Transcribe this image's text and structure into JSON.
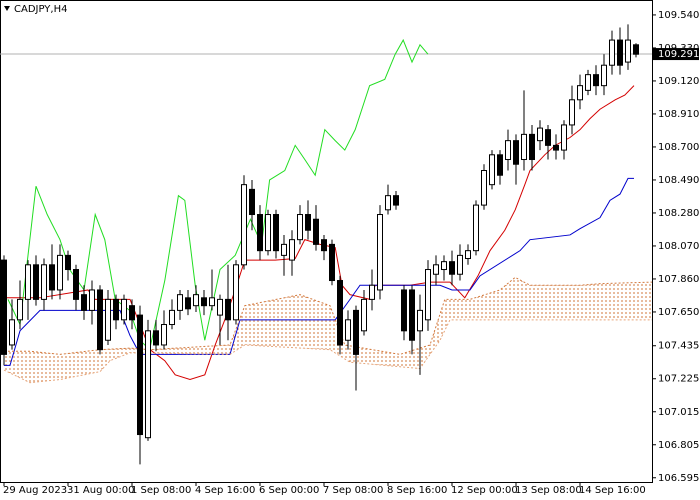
{
  "chart_data": {
    "type": "candlestick",
    "title": "CADJPY,H4",
    "categories": [
      "29 Aug 2023",
      null,
      null,
      null,
      null,
      null,
      null,
      null,
      "31 Aug 00:00",
      null,
      null,
      null,
      null,
      null,
      null,
      null,
      "1 Sep 08:00",
      null,
      null,
      null,
      null,
      null,
      null,
      null,
      "4 Sep 16:00",
      null,
      null,
      null,
      null,
      null,
      null,
      null,
      "6 Sep 00:00",
      null,
      null,
      null,
      null,
      null,
      null,
      null,
      "7 Sep 08:00",
      null,
      null,
      null,
      null,
      null,
      null,
      null,
      "8 Sep 16:00",
      null,
      null,
      null,
      null,
      null,
      null,
      null,
      "12 Sep 00:00",
      null,
      null,
      null,
      null,
      null,
      null,
      null,
      "13 Sep 08:00",
      null,
      null,
      null,
      null,
      null,
      null,
      null,
      "14 Sep 16:00",
      null,
      null,
      null,
      null,
      null,
      null,
      null,
      null,
      null
    ],
    "open": [
      107.98,
      107.44,
      107.6,
      107.73,
      107.95,
      107.73,
      107.95,
      107.79,
      108.01,
      107.92,
      107.76,
      107.66,
      107.79,
      107.47,
      107.73,
      107.6,
      107.69,
      107.63,
      106.85,
      107.53,
      107.44,
      107.57,
      107.66,
      107.74,
      107.69,
      107.74,
      107.69,
      107.63,
      107.73,
      107.6,
      107.95,
      108.43,
      108.27,
      108.04,
      108.27,
      108.01,
      107.98,
      108.11,
      108.27,
      108.24,
      108.11,
      108.08,
      107.85,
      107.47,
      107.66,
      107.53,
      107.73,
      107.79,
      108.3,
      108.39,
      107.79,
      107.79,
      107.53,
      107.6,
      107.89,
      107.92,
      107.97,
      107.89,
      107.99,
      108.04,
      108.33,
      108.46,
      108.65,
      108.62,
      108.74,
      108.62,
      108.78,
      108.74,
      108.81,
      108.71,
      108.68,
      108.84,
      109.0,
      109.06,
      109.16,
      109.09,
      109.22,
      109.38,
      109.24,
      109.35,
      null,
      null
    ],
    "high": [
      108.01,
      107.73,
      107.85,
      107.98,
      108.01,
      107.99,
      108.08,
      108.08,
      108.04,
      107.95,
      107.82,
      107.85,
      107.82,
      107.79,
      107.76,
      107.76,
      107.73,
      107.69,
      107.6,
      107.6,
      107.66,
      107.73,
      107.79,
      107.79,
      107.82,
      107.79,
      107.92,
      107.76,
      107.95,
      107.98,
      108.52,
      108.49,
      108.33,
      108.3,
      108.3,
      108.14,
      108.17,
      108.33,
      108.36,
      108.33,
      108.14,
      108.11,
      107.88,
      107.66,
      107.69,
      107.79,
      107.92,
      108.33,
      108.46,
      108.42,
      107.82,
      107.82,
      107.76,
      107.98,
      108.01,
      108.01,
      108.04,
      108.08,
      108.08,
      108.36,
      108.59,
      108.68,
      108.68,
      108.81,
      108.78,
      109.06,
      108.84,
      108.87,
      108.84,
      108.78,
      108.87,
      109.09,
      109.16,
      109.19,
      109.22,
      109.29,
      109.44,
      109.46,
      109.48,
      109.36,
      null,
      null
    ],
    "low": [
      107.31,
      107.41,
      107.54,
      107.6,
      107.69,
      107.66,
      107.73,
      107.73,
      107.85,
      107.66,
      107.6,
      107.57,
      107.38,
      107.44,
      107.54,
      107.57,
      107.54,
      106.68,
      106.83,
      107.4,
      107.41,
      107.54,
      107.6,
      107.63,
      107.65,
      107.63,
      107.66,
      107.44,
      107.47,
      107.57,
      107.92,
      108.17,
      107.98,
      108.01,
      107.99,
      107.88,
      107.88,
      108.08,
      108.11,
      108.04,
      107.98,
      107.82,
      107.38,
      107.41,
      107.15,
      107.5,
      107.66,
      107.73,
      108.27,
      108.3,
      107.47,
      107.38,
      107.25,
      107.53,
      107.82,
      107.85,
      107.82,
      107.85,
      107.95,
      108.01,
      108.3,
      108.43,
      108.46,
      108.55,
      108.46,
      108.55,
      108.55,
      108.68,
      108.62,
      108.62,
      108.62,
      108.78,
      108.94,
      109.03,
      109.03,
      109.03,
      109.16,
      109.16,
      109.19,
      109.27,
      null,
      null
    ],
    "close": [
      107.38,
      107.6,
      107.73,
      107.95,
      107.73,
      107.95,
      107.79,
      108.01,
      107.92,
      107.73,
      107.66,
      107.79,
      107.41,
      107.73,
      107.6,
      107.73,
      107.6,
      106.87,
      107.53,
      107.44,
      107.57,
      107.66,
      107.76,
      107.67,
      107.76,
      107.69,
      107.74,
      107.73,
      107.6,
      107.95,
      108.46,
      108.27,
      108.04,
      108.27,
      108.04,
      108.08,
      108.11,
      108.27,
      108.17,
      108.08,
      108.04,
      107.85,
      107.44,
      107.6,
      107.38,
      107.73,
      107.82,
      108.27,
      108.39,
      108.33,
      107.53,
      107.47,
      107.66,
      107.92,
      107.95,
      107.97,
      107.89,
      108.01,
      108.04,
      108.33,
      108.55,
      108.65,
      108.52,
      108.74,
      108.59,
      108.78,
      108.62,
      108.82,
      108.71,
      108.68,
      108.84,
      109.0,
      109.09,
      109.16,
      109.09,
      109.22,
      109.38,
      109.22,
      109.38,
      109.29,
      null,
      null
    ],
    "up_color": "#ffffff",
    "down_color": "#000000",
    "wick_color": "#000000",
    "series": [
      {
        "color": "#d40000",
        "x": [
          0,
          4.5,
          10.5,
          11.4,
          15.75,
          18.25,
          20.1,
          21.4,
          23.25,
          25.1,
          26.4,
          27.6,
          28.9,
          30.1,
          33.9,
          36.4,
          37.6,
          39.5,
          41.4,
          42.25,
          43.25,
          45.75,
          46.4,
          50.75,
          53.25,
          55.75,
          57.6,
          59.25,
          60.75,
          62.6,
          63.9,
          65.1,
          65.75,
          67.6,
          68.9,
          70.75,
          72,
          73.25,
          74.5,
          76.4,
          77.6,
          78.75
        ],
        "values": [
          107.74,
          107.74,
          107.79,
          107.73,
          107.73,
          107.41,
          107.34,
          107.25,
          107.22,
          107.25,
          107.44,
          107.6,
          107.79,
          107.98,
          107.98,
          107.99,
          108.11,
          108.08,
          108.06,
          107.82,
          107.76,
          107.73,
          107.82,
          107.82,
          107.84,
          107.84,
          107.74,
          107.88,
          108.04,
          108.17,
          108.3,
          108.46,
          108.55,
          108.65,
          108.71,
          108.76,
          108.81,
          108.88,
          108.94,
          109.0,
          109.03,
          109.09
        ]
      },
      {
        "color": "#0000cc",
        "x": [
          0,
          0.75,
          2,
          4.5,
          12,
          14.5,
          15.75,
          17,
          28.25,
          29.5,
          41.4,
          43.25,
          44.5,
          54.5,
          56,
          58.25,
          59.5,
          64.5,
          65.75,
          70.75,
          72,
          74.5,
          75.75,
          77,
          78,
          78.75
        ],
        "values": [
          107.31,
          107.31,
          107.53,
          107.66,
          107.66,
          107.66,
          107.5,
          107.38,
          107.38,
          107.6,
          107.6,
          107.73,
          107.82,
          107.82,
          107.79,
          107.79,
          107.88,
          108.04,
          108.11,
          108.14,
          108.18,
          108.25,
          108.36,
          108.4,
          108.5,
          108.5
        ]
      },
      {
        "color": "#22dd22",
        "x": [
          0.5,
          2,
          4,
          5.4,
          7,
          8.2,
          10,
          11.4,
          12.6,
          13.9,
          15.7,
          17,
          18.2,
          20.1,
          21.8,
          22.6,
          23.9,
          25.1,
          27,
          28.9,
          30.8,
          32.2,
          33.2,
          35.1,
          36.4,
          37.6,
          38.9,
          40.1,
          41.4,
          42.6,
          43.9,
          45.7,
          47.6,
          48.9,
          49.9,
          51,
          52,
          53
        ],
        "values": [
          107.73,
          107.57,
          108.45,
          108.27,
          108.11,
          107.92,
          107.79,
          108.27,
          108.11,
          107.73,
          107.66,
          107.47,
          107.41,
          107.85,
          108.39,
          108.36,
          107.82,
          107.47,
          107.92,
          108.01,
          108.24,
          108.08,
          108.49,
          108.55,
          108.71,
          108.62,
          108.52,
          108.81,
          108.74,
          108.68,
          108.81,
          109.09,
          109.13,
          109.29,
          109.38,
          109.24,
          109.35,
          109.29
        ]
      },
      {
        "color": "#d2783c",
        "style": "dotted",
        "x": [
          0,
          3.25,
          7,
          12,
          15.75,
          18.25,
          28.25,
          30.1,
          37,
          40.75,
          42.6,
          49.5,
          53.25,
          55.1,
          58.25,
          62,
          63.9,
          65.75,
          72,
          74.5,
          81
        ],
        "values": [
          107.4,
          107.4,
          107.38,
          107.41,
          107.42,
          107.41,
          107.44,
          107.69,
          107.76,
          107.69,
          107.44,
          107.38,
          107.44,
          107.73,
          107.73,
          107.79,
          107.87,
          107.82,
          107.82,
          107.83,
          107.84
        ]
      },
      {
        "color": "#e6a57a",
        "style": "dotted",
        "x": [
          0,
          3.25,
          7,
          12,
          13.25,
          15.75,
          28.25,
          30.1,
          40.75,
          43.25,
          52,
          54.5,
          55.75,
          81
        ],
        "values": [
          107.28,
          107.2,
          107.22,
          107.27,
          107.34,
          107.39,
          107.38,
          107.44,
          107.41,
          107.33,
          107.29,
          107.47,
          107.6,
          107.6
        ]
      }
    ],
    "last_price": 109.291,
    "last_price_color": "#000000",
    "ylim": [
      106.568,
      109.635
    ],
    "yticks": [
      {
        "value": 109.54,
        "label": "109.540"
      },
      {
        "value": 109.33,
        "label": "109.330"
      },
      {
        "value": 109.12,
        "label": "109.120"
      },
      {
        "value": 108.91,
        "label": "108.910"
      },
      {
        "value": 108.7,
        "label": "108.700"
      },
      {
        "value": 108.49,
        "label": "108.490"
      },
      {
        "value": 108.28,
        "label": "108.280"
      },
      {
        "value": 108.07,
        "label": "108.070"
      },
      {
        "value": 107.86,
        "label": "107.860"
      },
      {
        "value": 107.65,
        "label": "107.650"
      },
      107.435,
      107.225,
      107.015,
      106.805,
      106.595
    ]
  }
}
